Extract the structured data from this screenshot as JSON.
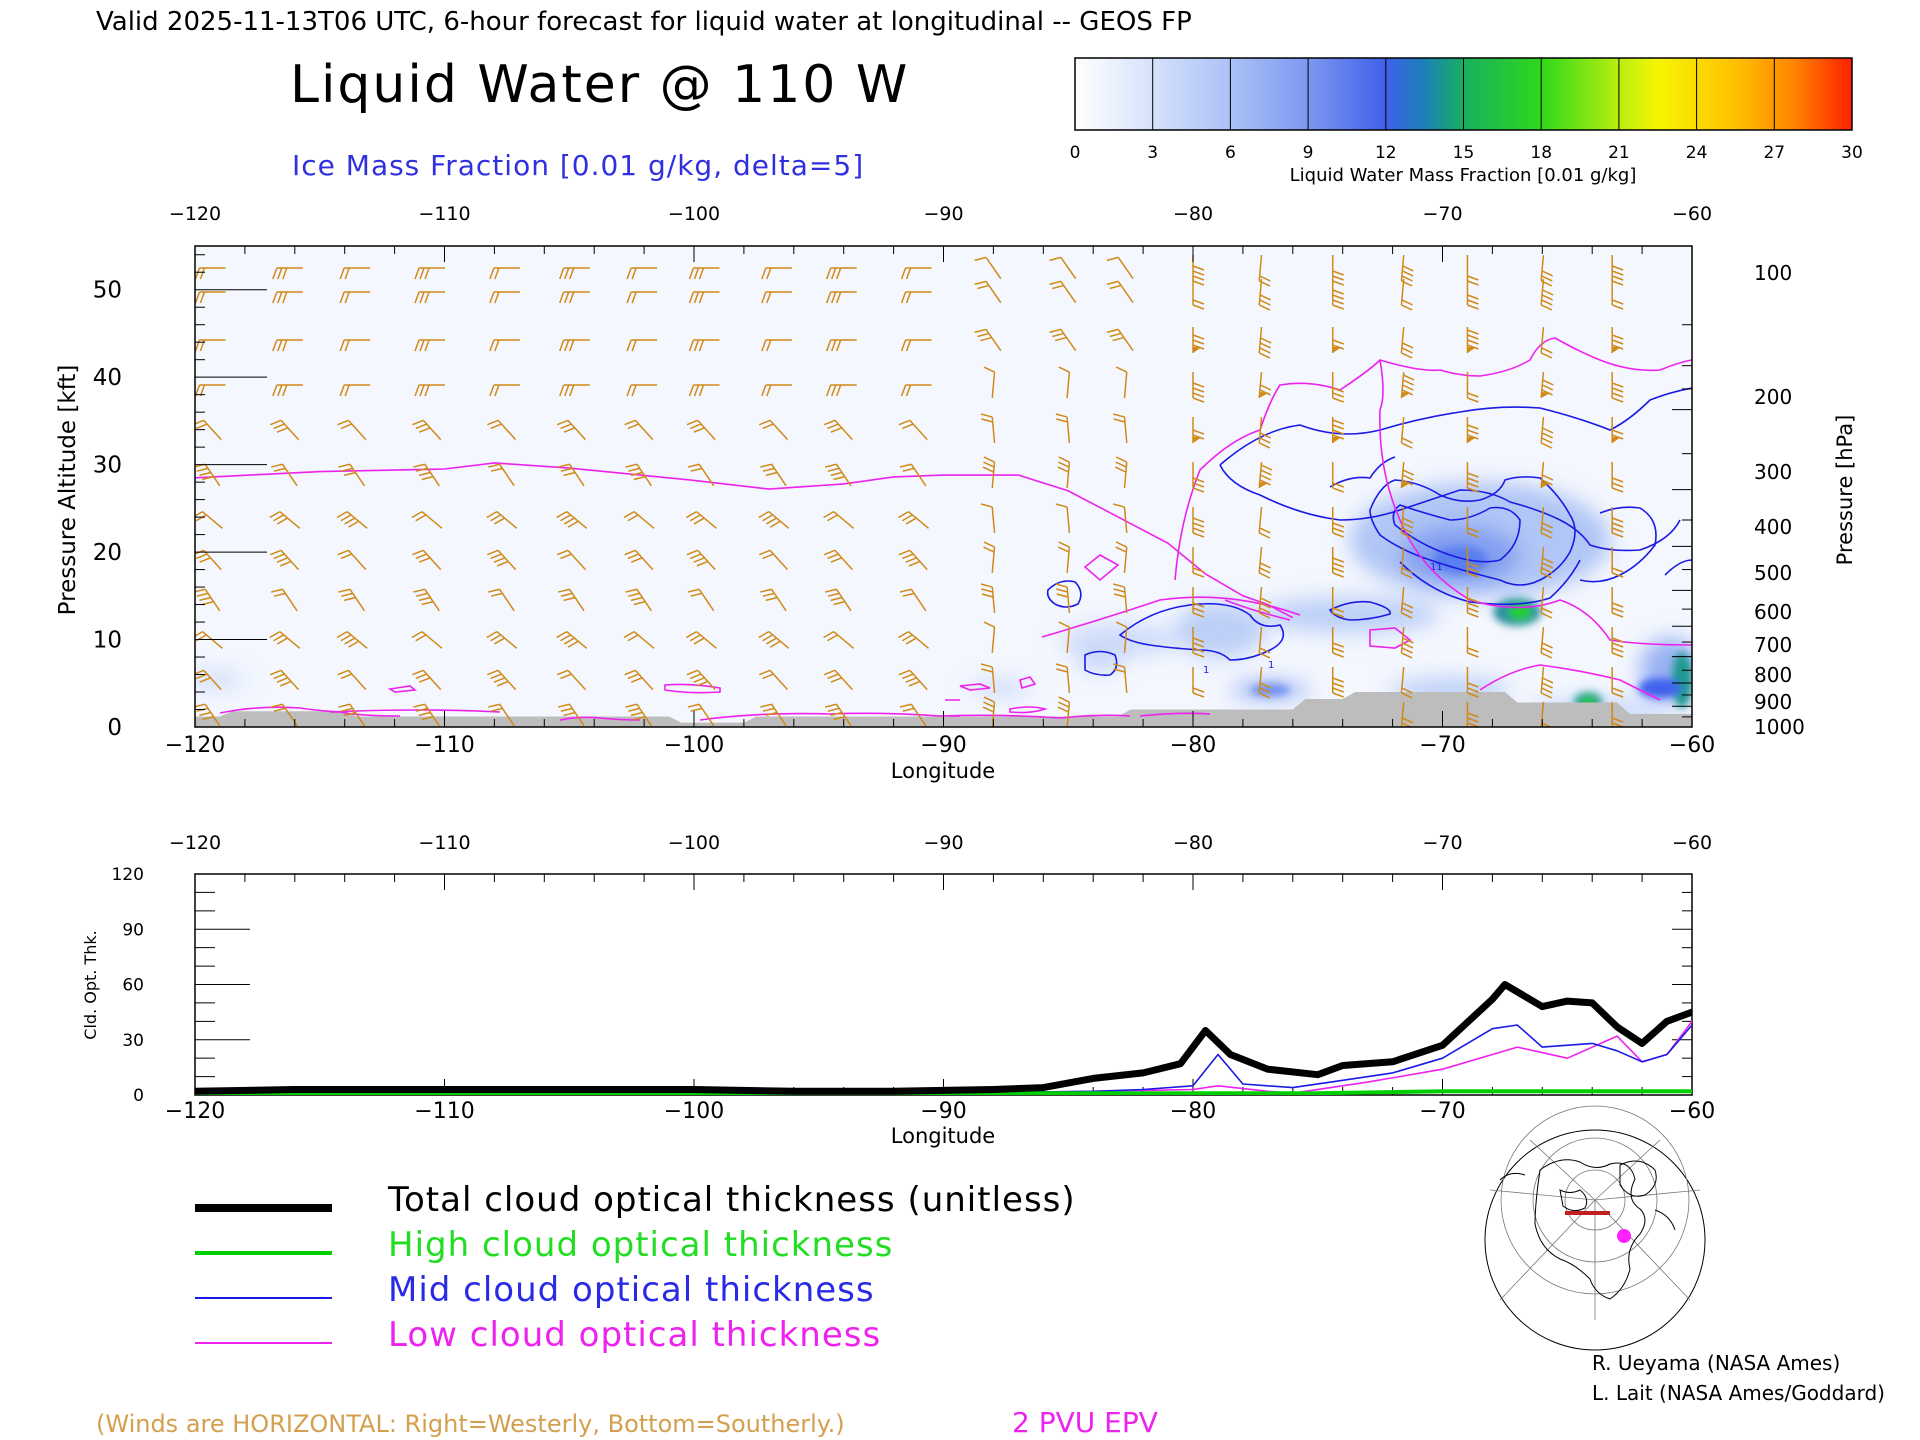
{
  "header": {
    "valid_line": "Valid 2025-11-13T06 UTC, 6-hour forecast for liquid water at longitudinal -- GEOS FP",
    "title": "Liquid Water @ 110 W",
    "subtitle": "Ice Mass Fraction [0.01 g/kg, delta=5]"
  },
  "colorbar": {
    "ticks": [
      "0",
      "3",
      "6",
      "9",
      "12",
      "15",
      "18",
      "21",
      "24",
      "27",
      "30"
    ],
    "label": "Liquid Water Mass Fraction [0.01 g/kg]",
    "colors": [
      "#f6f8fe",
      "#c7d6f8",
      "#9eb7f4",
      "#6f8ff0",
      "#3f62ec",
      "#1f9a8c",
      "#27d11c",
      "#8cea1e",
      "#f2f200",
      "#ffb400",
      "#ff7a00",
      "#ff2a00"
    ]
  },
  "top_plot": {
    "x_ticks": [
      "−120",
      "−110",
      "−100",
      "−90",
      "−80",
      "−70",
      "−60"
    ],
    "xlabel": "Longitude",
    "ylabel_left": "Pressure Altitude [kft]",
    "ylabel_right": "Pressure [hPa]",
    "kft_ticks": [
      "50",
      "40",
      "30",
      "20",
      "10",
      "0"
    ],
    "hpa_ticks": [
      "100",
      "200",
      "300",
      "400",
      "500",
      "600",
      "700",
      "800",
      "900",
      "1000"
    ]
  },
  "bottom_plot": {
    "x_ticks": [
      "−120",
      "−110",
      "−100",
      "−90",
      "−80",
      "−70",
      "−60"
    ],
    "xlabel": "Longitude",
    "ylabel": "Cld. Opt. Thk.",
    "y_ticks": [
      "120",
      "90",
      "60",
      "30",
      "0"
    ]
  },
  "legend": {
    "total": "Total cloud optical thickness (unitless)",
    "high": "High cloud optical thickness",
    "mid": "Mid cloud optical thickness",
    "low": "Low cloud optical thickness"
  },
  "footer": {
    "winds_note": "(Winds are HORIZONTAL: Right=Westerly, Bottom=Southerly.)",
    "epv_label": "2 PVU EPV",
    "credit1": "R. Ueyama (NASA Ames)",
    "credit2": "L. Lait (NASA Ames/Goddard)"
  },
  "colors": {
    "total": "#000000",
    "high": "#00d000",
    "mid": "#1a1ae6",
    "low": "#ee22ee",
    "barb": "#d08a18",
    "terrain": "#bdbdbd",
    "ice_contour": "#1a1ae6",
    "epv": "#ee22ee"
  },
  "chart_data": [
    {
      "type": "heatmap",
      "title": "Liquid Water @ 110 W",
      "xlabel": "Longitude",
      "ylabel": "Pressure Altitude [kft]",
      "xlim": [
        -120,
        -60
      ],
      "ylim": [
        0,
        55
      ],
      "colorbar_range": [
        0,
        30
      ],
      "liquid_water_features": [
        {
          "lon": -67.0,
          "kft": 13.5,
          "peak": 17
        },
        {
          "lon": -64.4,
          "kft": 3.2,
          "peak": 16
        },
        {
          "lon": -60.5,
          "kft": 5.0,
          "peak": 15
        },
        {
          "lon": -60.3,
          "kft": 9.0,
          "peak": 13
        },
        {
          "lon": -69.0,
          "kft": 21.0,
          "peak": 9
        },
        {
          "lon": -66.0,
          "kft": 19.0,
          "peak": 8
        },
        {
          "lon": -79.0,
          "kft": 12.0,
          "peak": 5
        },
        {
          "lon": -76.5,
          "kft": 4.5,
          "peak": 6
        }
      ],
      "epv_2pvu_kft": [
        [
          -120,
          28.5
        ],
        [
          -115,
          29.2
        ],
        [
          -110,
          29.5
        ],
        [
          -108,
          30.2
        ],
        [
          -105,
          29.6
        ],
        [
          -100,
          28.2
        ],
        [
          -97,
          27.2
        ],
        [
          -94,
          27.8
        ],
        [
          -92,
          28.6
        ],
        [
          -90,
          28.8
        ],
        [
          -87,
          28.8
        ],
        [
          -85,
          27.0
        ],
        [
          -83,
          24.0
        ],
        [
          -81,
          21.0
        ],
        [
          -79.5,
          17.5
        ],
        [
          -78,
          15.0
        ],
        [
          -77,
          14.0
        ],
        [
          -76,
          12.5
        ]
      ]
    },
    {
      "type": "line",
      "xlabel": "Longitude",
      "ylabel": "Cld. Opt. Thk.",
      "xlim": [
        -120,
        -60
      ],
      "ylim": [
        0,
        120
      ],
      "series": [
        {
          "name": "Total cloud optical thickness (unitless)",
          "x": [
            -120,
            -116,
            -112,
            -108,
            -104,
            -100,
            -96,
            -92,
            -88,
            -86,
            -84,
            -82,
            -80.5,
            -79.5,
            -78.5,
            -77,
            -75,
            -74,
            -72,
            -70,
            -68,
            -67.5,
            -66,
            -65,
            -64,
            -63,
            -62,
            -61,
            -60
          ],
          "values": [
            2,
            3,
            3,
            3,
            3,
            3,
            2,
            2,
            3,
            4,
            9,
            12,
            17,
            35,
            22,
            14,
            11,
            16,
            18,
            27,
            52,
            60,
            48,
            51,
            50,
            37,
            28,
            40,
            45
          ]
        },
        {
          "name": "High cloud optical thickness",
          "x": [
            -120,
            -100,
            -90,
            -80,
            -75,
            -70,
            -65,
            -62,
            -60
          ],
          "values": [
            1,
            1,
            1,
            1,
            1,
            2,
            2,
            2,
            2
          ]
        },
        {
          "name": "Mid cloud optical thickness",
          "x": [
            -120,
            -100,
            -90,
            -84,
            -82,
            -80,
            -79,
            -78,
            -76,
            -74,
            -72,
            -70,
            -68,
            -67,
            -66,
            -64,
            -63,
            -62,
            -61,
            -60
          ],
          "values": [
            1,
            1,
            1,
            2,
            3,
            5,
            22,
            6,
            4,
            8,
            12,
            20,
            36,
            38,
            26,
            28,
            24,
            18,
            22,
            38
          ]
        },
        {
          "name": "Low cloud optical thickness",
          "x": [
            -120,
            -100,
            -90,
            -84,
            -80,
            -79,
            -77,
            -76,
            -73,
            -70,
            -68,
            -67,
            -65,
            -63,
            -62,
            -61,
            -60
          ],
          "values": [
            1,
            1,
            1,
            2,
            3,
            5,
            2,
            1,
            7,
            14,
            22,
            26,
            20,
            32,
            18,
            22,
            40
          ]
        }
      ]
    }
  ]
}
